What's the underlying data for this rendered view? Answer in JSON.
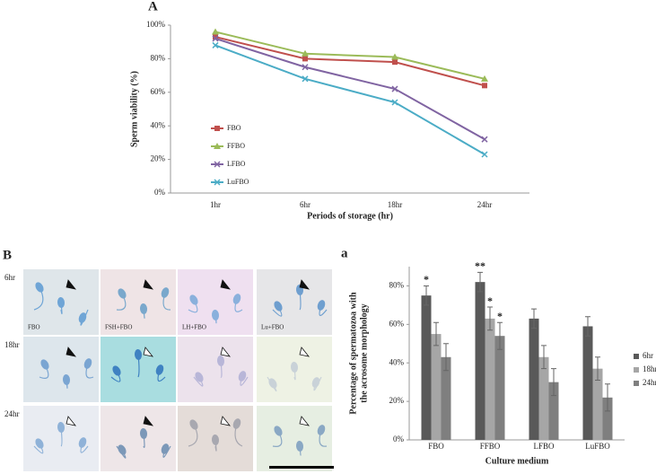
{
  "chart_data": [
    {
      "type": "line",
      "label": "A",
      "xlabel": "Periods of storage (hr)",
      "ylabel": "Sperm viability (%)",
      "categories": [
        "1hr",
        "6hr",
        "18hr",
        "24hr"
      ],
      "series": [
        {
          "name": "FBO",
          "color": "#c0504d",
          "marker": "square",
          "values": [
            93,
            80,
            78,
            64
          ]
        },
        {
          "name": "FFBO",
          "color": "#9bbb59",
          "marker": "triangle",
          "values": [
            96,
            83,
            81,
            68
          ]
        },
        {
          "name": "LFBO",
          "color": "#8064a2",
          "marker": "x",
          "values": [
            92,
            75,
            62,
            32
          ]
        },
        {
          "name": "LuFBO",
          "color": "#4bacc6",
          "marker": "x",
          "values": [
            88,
            68,
            54,
            23
          ]
        }
      ],
      "ylim": [
        0,
        100
      ],
      "yticks": [
        {
          "value": 0,
          "label": "0%"
        },
        {
          "value": 20,
          "label": "20%"
        },
        {
          "value": 40,
          "label": "40%"
        },
        {
          "value": 60,
          "label": "60%"
        },
        {
          "value": 80,
          "label": "80%"
        },
        {
          "value": 100,
          "label": "100%"
        }
      ],
      "grid": false,
      "legend": "left"
    },
    {
      "type": "bar",
      "label": "a",
      "xlabel": "Culture medium",
      "ylabel": [
        "Percentage of spermatozoa with",
        "the acrosome morphology"
      ],
      "categories": [
        "FBO",
        "FFBO",
        "LFBO",
        "LuFBO"
      ],
      "series": [
        {
          "name": "6hr",
          "color": "#595959",
          "values": [
            75,
            82,
            63,
            59
          ],
          "errors": [
            5,
            5,
            5,
            5
          ],
          "significance": [
            "*",
            "**",
            null,
            null
          ]
        },
        {
          "name": "18hr",
          "color": "#a6a6a6",
          "values": [
            55,
            63,
            43,
            37
          ],
          "errors": [
            6,
            6,
            6,
            6
          ],
          "significance": [
            null,
            "*",
            null,
            null
          ]
        },
        {
          "name": "24hr",
          "color": "#7f7f7f",
          "values": [
            43,
            54,
            30,
            22
          ],
          "errors": [
            7,
            7,
            7,
            7
          ],
          "significance": [
            null,
            "*",
            null,
            null
          ]
        }
      ],
      "ylim": [
        0,
        90
      ],
      "yticks": [
        {
          "value": 0,
          "label": "0%"
        },
        {
          "value": 20,
          "label": "20%"
        },
        {
          "value": 40,
          "label": "40%"
        },
        {
          "value": 60,
          "label": "60%"
        },
        {
          "value": 80,
          "label": "80%"
        }
      ],
      "grid": false,
      "legend": "right"
    }
  ],
  "micrographs": {
    "label": "B",
    "rows": [
      "6hr",
      "18hr",
      "24hr"
    ],
    "columns": [
      "FBO",
      "FSH+FBO",
      "LH+FBO",
      "Lu+FBO"
    ]
  }
}
